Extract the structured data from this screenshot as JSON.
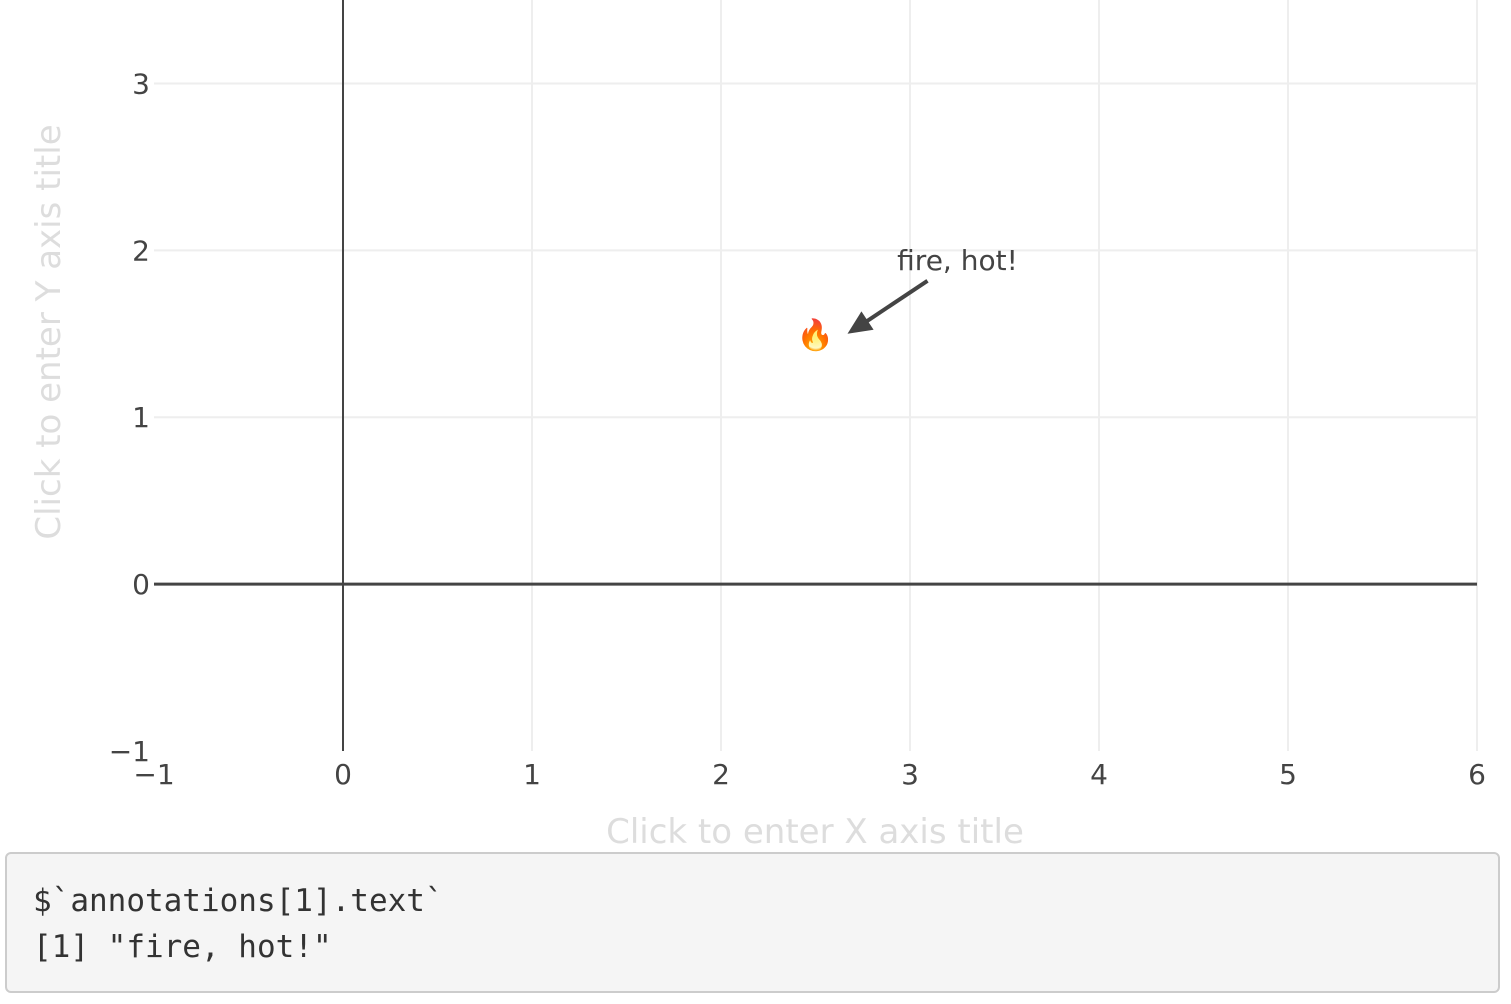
{
  "chart_data": {
    "type": "scatter",
    "title": "",
    "xlabel": "Click to enter X axis title",
    "ylabel": "Click to enter Y axis title",
    "xlim": [
      -1,
      6
    ],
    "ylim": [
      -1,
      3.5
    ],
    "xticks": [
      -1,
      0,
      1,
      2,
      3,
      4,
      5,
      6
    ],
    "yticks": [
      -1,
      0,
      1,
      2,
      3
    ],
    "xtick_labels": [
      "−1",
      "0",
      "1",
      "2",
      "3",
      "4",
      "5",
      "6"
    ],
    "ytick_labels": [
      "−1",
      "0",
      "1",
      "2",
      "3"
    ],
    "grid": true,
    "zeroline": true,
    "points": [
      {
        "x": 2.5,
        "y": 1.5,
        "symbol": "fire-emoji",
        "glyph": "🔥"
      }
    ],
    "annotations": [
      {
        "text": "fire, hot!",
        "x": 2.5,
        "y": 1.5,
        "showarrow": true
      }
    ]
  },
  "console": {
    "line1": "$`annotations[1].text`",
    "line2": "[1] \"fire, hot!\""
  },
  "colors": {
    "grid": "#eeeeee",
    "zeroline": "#444444",
    "tick_text": "#444444",
    "placeholder_title": "#dddddd",
    "arrow": "#444444",
    "console_bg": "#f5f5f5"
  }
}
